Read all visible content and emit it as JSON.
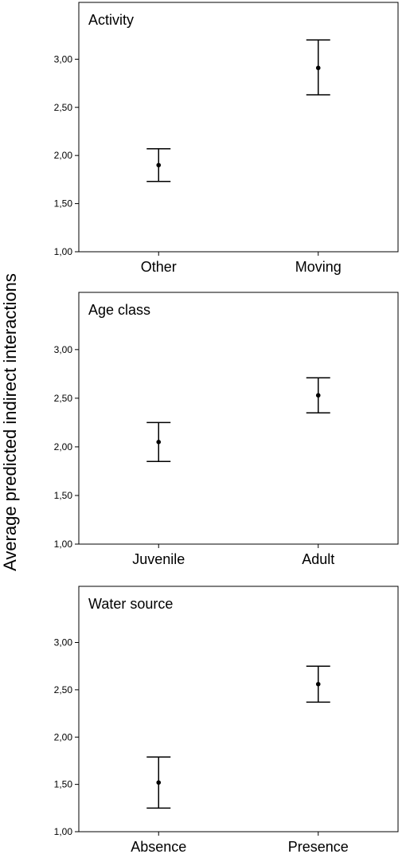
{
  "figure": {
    "shared_ylabel": "Average predicted indirect interactions"
  },
  "chart_data": [
    {
      "type": "errorbar",
      "title": "Activity",
      "categories": [
        "Other",
        "Moving"
      ],
      "values": [
        1.9,
        2.91
      ],
      "lower": [
        1.73,
        2.63
      ],
      "upper": [
        2.07,
        3.2
      ],
      "ylim": [
        1.0,
        3.4
      ],
      "yticks": [
        "1,00",
        "1,50",
        "2,00",
        "2,50",
        "3,00"
      ],
      "grid": false
    },
    {
      "type": "errorbar",
      "title": "Age class",
      "categories": [
        "Juvenile",
        "Adult"
      ],
      "values": [
        2.05,
        2.53
      ],
      "lower": [
        1.85,
        2.35
      ],
      "upper": [
        2.25,
        2.71
      ],
      "ylim": [
        1.0,
        3.4
      ],
      "yticks": [
        "1,00",
        "1,50",
        "2,00",
        "2,50",
        "3,00"
      ],
      "grid": false
    },
    {
      "type": "errorbar",
      "title": "Water source",
      "categories": [
        "Absence",
        "Presence"
      ],
      "values": [
        1.52,
        2.56
      ],
      "lower": [
        1.25,
        2.37
      ],
      "upper": [
        1.79,
        2.75
      ],
      "ylim": [
        1.0,
        3.4
      ],
      "yticks": [
        "1,00",
        "1,50",
        "2,00",
        "2,50",
        "3,00"
      ],
      "grid": false
    }
  ]
}
